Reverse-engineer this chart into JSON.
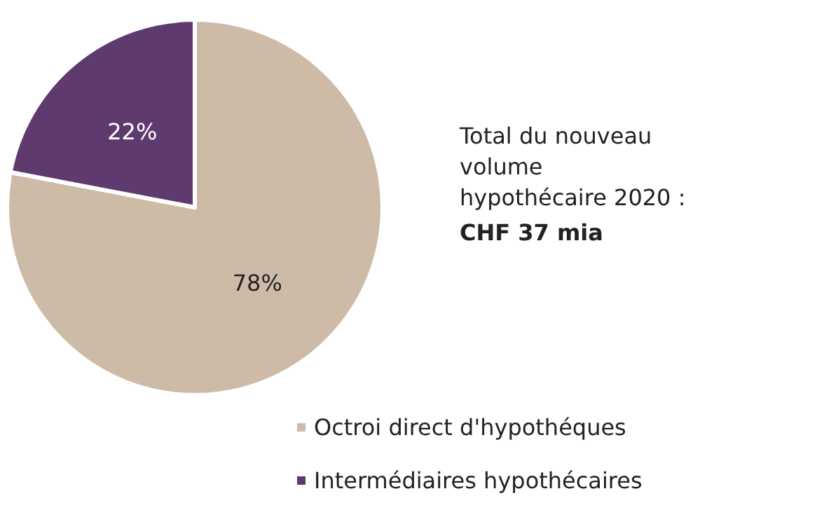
{
  "chart_data": {
    "type": "pie",
    "categories": [
      "Octroi direct d'hypothéques",
      "Intermédiaires hypothécaires"
    ],
    "values": [
      78,
      22
    ],
    "colors": [
      "#cdbba8",
      "#5f3a6e"
    ],
    "value_labels": [
      "78%",
      "22%"
    ],
    "legend": "bottom",
    "annotations": [
      "Total du nouveau volume hypothécaire 2020 :",
      "CHF 37 mia"
    ]
  }
}
